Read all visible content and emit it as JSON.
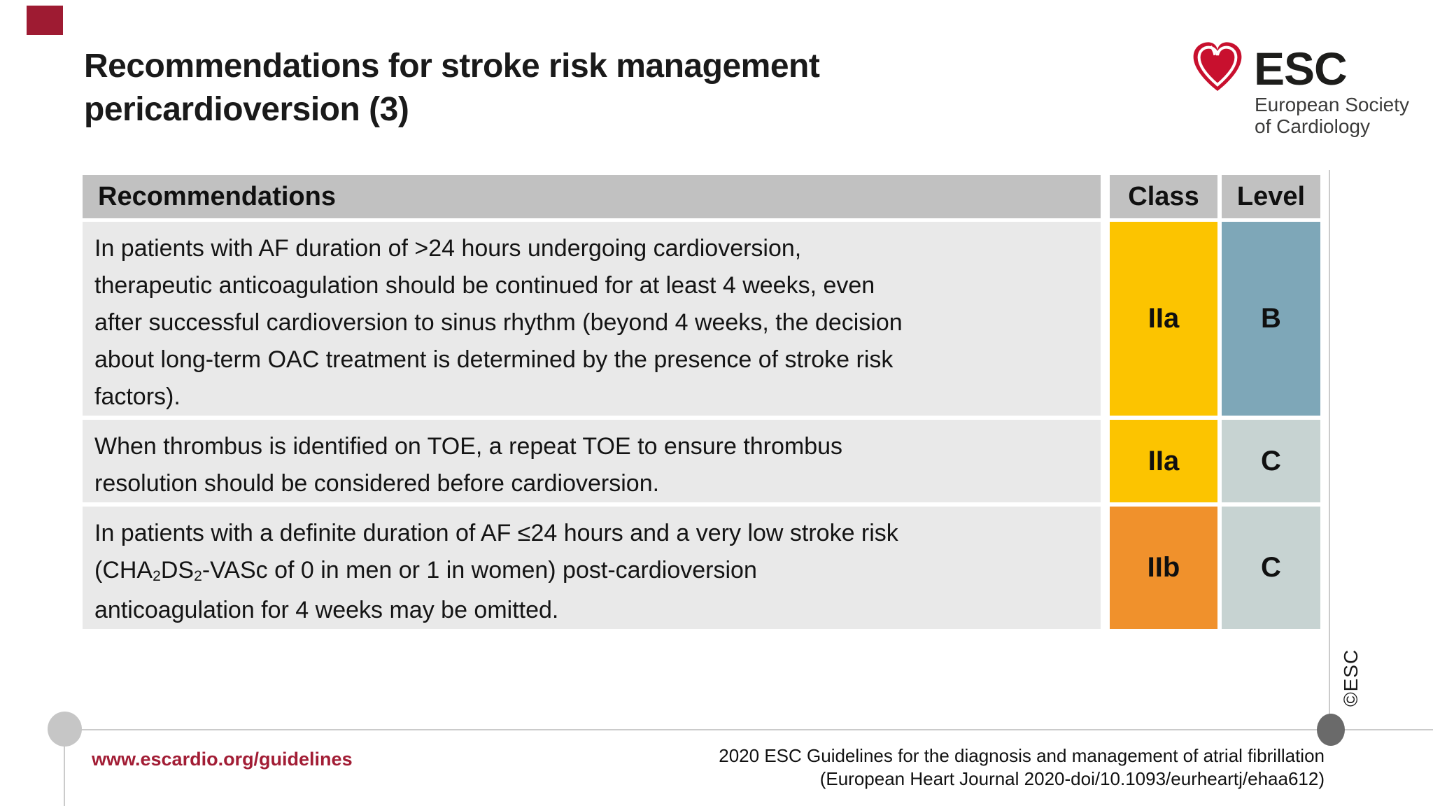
{
  "slide": {
    "title_line1": "Recommendations for stroke risk management",
    "title_line2": "pericardioversion (3)"
  },
  "logo": {
    "name": "ESC",
    "subtitle_line1": "European Society",
    "subtitle_line2": "of Cardiology",
    "heart_color": "#c8102e"
  },
  "table": {
    "headers": {
      "recommendations": "Recommendations",
      "class": "Class",
      "level": "Level"
    },
    "rows": [
      {
        "class": "IIa",
        "class_color": "#fcc400",
        "level": "B",
        "level_color": "#7ea7b8",
        "lines": [
          [
            {
              "text": "In patients with AF duration of >24 hours undergoing cardioversion,"
            }
          ],
          [
            {
              "text": "therapeutic anticoagulation should be continued for at least 4 weeks, even"
            }
          ],
          [
            {
              "text": "after successful cardioversion to sinus rhythm (beyond 4 weeks, the decision"
            }
          ],
          [
            {
              "text": "about long-term OAC treatment is determined by the presence of stroke risk"
            }
          ],
          [
            {
              "text": "factors)."
            }
          ]
        ]
      },
      {
        "class": "IIa",
        "class_color": "#fcc400",
        "level": "C",
        "level_color": "#c7d3d2",
        "lines": [
          [
            {
              "text": "When thrombus is identified on TOE, a repeat TOE to ensure thrombus"
            }
          ],
          [
            {
              "text": "resolution should be considered before cardioversion."
            }
          ]
        ]
      },
      {
        "class": "IIb",
        "class_color": "#f0912c",
        "level": "C",
        "level_color": "#c7d3d2",
        "lines": [
          [
            {
              "text": "In patients with a definite duration of AF ≤24 hours and a very low stroke risk"
            }
          ],
          [
            {
              "text": "(CHA"
            },
            {
              "text": "2",
              "sub": true
            },
            {
              "text": "DS"
            },
            {
              "text": "2",
              "sub": true
            },
            {
              "text": "-VASc of 0 in men or 1 in women) post-cardioversion"
            }
          ],
          [
            {
              "text": "anticoagulation for 4 weeks may be omitted."
            }
          ]
        ]
      }
    ]
  },
  "watermark": "©ESC",
  "footer": {
    "website": "www.escardio.org/guidelines",
    "citation_line1": "2020 ESC Guidelines for the diagnosis and management of atrial fibrillation",
    "citation_line2": "(European Heart Journal 2020-doi/10.1093/eurheartj/ehaa612)"
  },
  "colors": {
    "corner_square": "#9e1b32",
    "header_gray": "#c1c1c1",
    "row_gray": "#e9e9e9",
    "class_iia_yellow": "#fcc400",
    "class_iib_orange": "#f0912c",
    "level_b_blue": "#7ea7b8",
    "level_c_gray": "#c7d3d2",
    "footer_red": "#a21d35"
  }
}
